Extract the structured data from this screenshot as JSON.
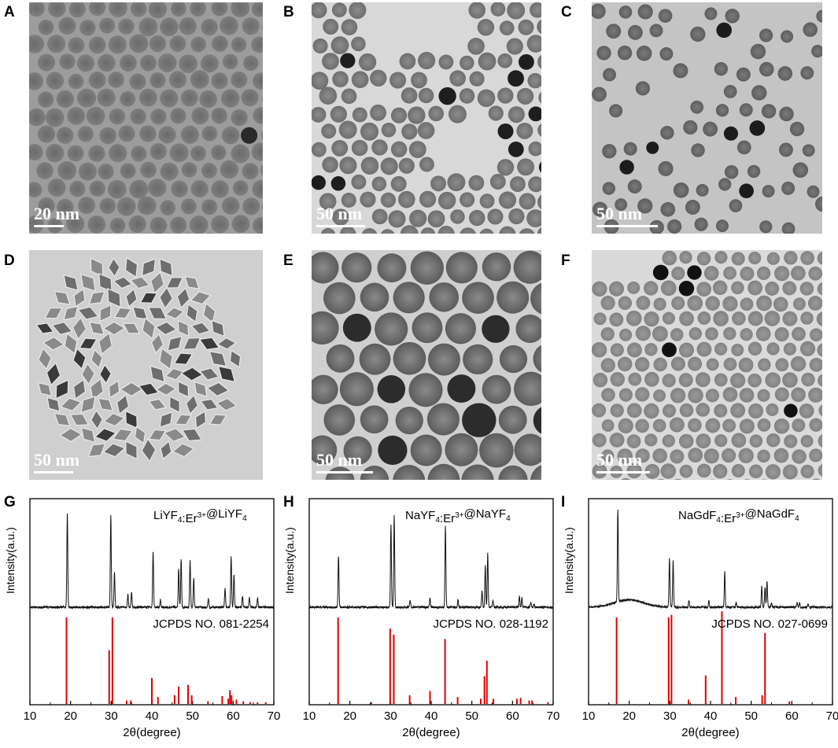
{
  "panels": {
    "A": {
      "letter": "A",
      "scale": "20 nm"
    },
    "B": {
      "letter": "B",
      "scale": "50 nm"
    },
    "C": {
      "letter": "C",
      "scale": "50 nm"
    },
    "D": {
      "letter": "D",
      "scale": "50 nm"
    },
    "E": {
      "letter": "E",
      "scale": "50 nm"
    },
    "F": {
      "letter": "F",
      "scale": "50 nm"
    },
    "G": {
      "letter": "G"
    },
    "H": {
      "letter": "H"
    },
    "I": {
      "letter": "I"
    }
  },
  "chart_data": [
    {
      "type": "line",
      "panel": "G",
      "sample_label": "LiYF4:Er3+@LiYF4",
      "reference_label": "JCPDS NO. 081-2254",
      "xlabel": "2θ(degree)",
      "ylabel": "Intensity(a.u.)",
      "xlim": [
        10,
        70
      ],
      "xticks": [
        10,
        20,
        30,
        40,
        50,
        60,
        70
      ],
      "pattern_peaks": [
        [
          19.2,
          1.0
        ],
        [
          29.9,
          1.0
        ],
        [
          30.8,
          0.38
        ],
        [
          34.1,
          0.14
        ],
        [
          35.0,
          0.16
        ],
        [
          40.3,
          0.6
        ],
        [
          42.1,
          0.08
        ],
        [
          46.6,
          0.42
        ],
        [
          47.2,
          0.52
        ],
        [
          49.4,
          0.5
        ],
        [
          50.3,
          0.32
        ],
        [
          53.9,
          0.1
        ],
        [
          58.0,
          0.2
        ],
        [
          59.5,
          0.55
        ],
        [
          60.2,
          0.35
        ],
        [
          62.3,
          0.12
        ],
        [
          64.0,
          0.1
        ],
        [
          66.0,
          0.1
        ]
      ],
      "reference_lines": [
        [
          19.0,
          1.0
        ],
        [
          29.5,
          0.62
        ],
        [
          30.3,
          1.0
        ],
        [
          33.8,
          0.04
        ],
        [
          34.8,
          0.04
        ],
        [
          40.0,
          0.3
        ],
        [
          41.5,
          0.08
        ],
        [
          45.6,
          0.1
        ],
        [
          46.6,
          0.2
        ],
        [
          48.9,
          0.22
        ],
        [
          49.8,
          0.1
        ],
        [
          53.8,
          0.03
        ],
        [
          57.3,
          0.09
        ],
        [
          58.8,
          0.06
        ],
        [
          59.2,
          0.16
        ],
        [
          59.6,
          0.1
        ],
        [
          60.8,
          0.05
        ],
        [
          62.5,
          0.03
        ],
        [
          64.2,
          0.02
        ],
        [
          66.0,
          0.02
        ],
        [
          68.0,
          0.02
        ]
      ]
    },
    {
      "type": "line",
      "panel": "H",
      "sample_label": "NaYF4:Er3+@NaYF4",
      "reference_label": "JCPDS NO. 028-1192",
      "xlabel": "2θ(degree)",
      "ylabel": "Intensity(a.u.)",
      "xlim": [
        10,
        70
      ],
      "xticks": [
        10,
        20,
        30,
        40,
        50,
        60,
        70
      ],
      "pattern_peaks": [
        [
          17.2,
          0.55
        ],
        [
          30.1,
          0.9
        ],
        [
          30.9,
          1.0
        ],
        [
          34.8,
          0.08
        ],
        [
          39.7,
          0.1
        ],
        [
          43.5,
          0.88
        ],
        [
          46.6,
          0.08
        ],
        [
          52.5,
          0.17
        ],
        [
          53.3,
          0.45
        ],
        [
          53.9,
          0.58
        ],
        [
          55.2,
          0.08
        ],
        [
          61.7,
          0.12
        ],
        [
          62.3,
          0.1
        ],
        [
          64.5,
          0.05
        ],
        [
          65.3,
          0.04
        ]
      ],
      "reference_lines": [
        [
          17.1,
          1.0
        ],
        [
          25.3,
          0.02
        ],
        [
          29.9,
          0.87
        ],
        [
          30.8,
          0.8
        ],
        [
          34.7,
          0.1
        ],
        [
          39.7,
          0.15
        ],
        [
          43.4,
          0.75
        ],
        [
          46.5,
          0.08
        ],
        [
          52.2,
          0.06
        ],
        [
          53.1,
          0.32
        ],
        [
          53.7,
          0.5
        ],
        [
          55.3,
          0.06
        ],
        [
          61.1,
          0.06
        ],
        [
          62.0,
          0.07
        ],
        [
          64.1,
          0.04
        ],
        [
          64.8,
          0.04
        ],
        [
          68.7,
          0.02
        ]
      ]
    },
    {
      "type": "line",
      "panel": "I",
      "sample_label": "NaGdF4:Er3+@NaGdF4",
      "reference_label": "JCPDS NO. 027-0699",
      "xlabel": "2θ(degree)",
      "ylabel": "Intensity(a.u.)",
      "xlim": [
        10,
        70
      ],
      "xticks": [
        10,
        20,
        30,
        40,
        50,
        60,
        70
      ],
      "pattern_peaks": [
        [
          17.2,
          1.0
        ],
        [
          29.9,
          0.52
        ],
        [
          30.8,
          0.5
        ],
        [
          34.7,
          0.08
        ],
        [
          39.6,
          0.07
        ],
        [
          43.5,
          0.38
        ],
        [
          46.3,
          0.05
        ],
        [
          52.6,
          0.22
        ],
        [
          53.4,
          0.22
        ],
        [
          53.9,
          0.28
        ],
        [
          55.0,
          0.05
        ],
        [
          61.3,
          0.05
        ],
        [
          61.9,
          0.05
        ],
        [
          64.0,
          0.03
        ]
      ],
      "reference_lines": [
        [
          16.9,
          1.0
        ],
        [
          29.7,
          1.0
        ],
        [
          30.4,
          1.03
        ],
        [
          34.6,
          0.05
        ],
        [
          38.8,
          0.33
        ],
        [
          42.8,
          1.07
        ],
        [
          46.2,
          0.08
        ],
        [
          52.7,
          0.1
        ],
        [
          53.4,
          0.82
        ],
        [
          59.4,
          0.03
        ]
      ]
    }
  ]
}
